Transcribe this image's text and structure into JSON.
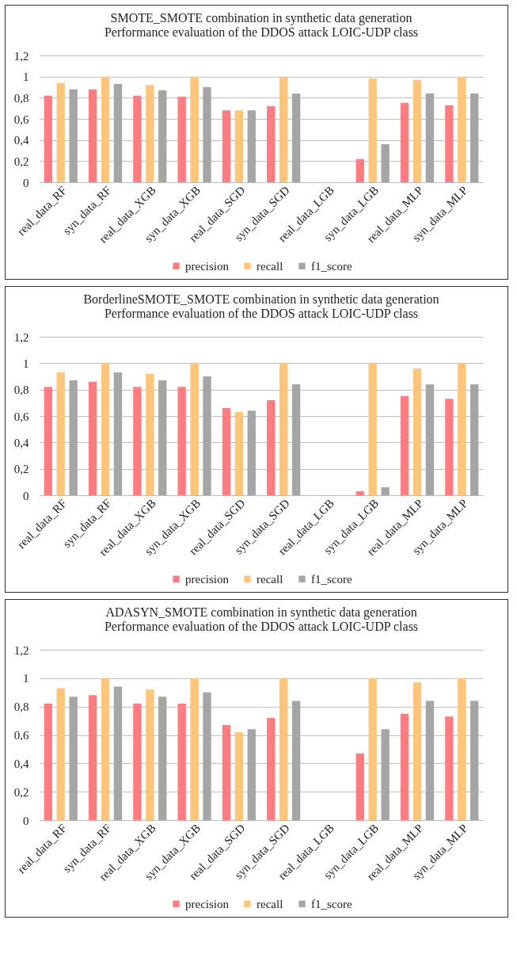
{
  "chart_data": [
    {
      "type": "bar",
      "title": "SMOTE_SMOTE  combination in synthetic data generation Performance evaluation of the DDOS attack LOIC-UDP class",
      "categories": [
        "real_data_RF",
        "syn_data_RF",
        "real_data_XGB",
        "syn_data_XGB",
        "real_data_SGD",
        "syn_data_SGD",
        "real_data_LGB",
        "syn_data_LGB",
        "real_data_MLP",
        "syn_data_MLP"
      ],
      "series": [
        {
          "name": "precision",
          "color": "#ff7c80",
          "values": [
            0.82,
            0.88,
            0.82,
            0.81,
            0.68,
            0.72,
            0,
            0.22,
            0.75,
            0.73
          ]
        },
        {
          "name": "recall",
          "color": "#ffc57a",
          "values": [
            0.94,
            1,
            0.92,
            1,
            0.68,
            1,
            0,
            0.98,
            0.97,
            1
          ]
        },
        {
          "name": "f1_score",
          "color": "#a5a5a5",
          "values": [
            0.88,
            0.93,
            0.87,
            0.9,
            0.68,
            0.84,
            0,
            0.36,
            0.84,
            0.84
          ]
        }
      ],
      "ylim": [
        0,
        1.2
      ],
      "yticks": [
        {
          "value": 0,
          "label": "0"
        },
        {
          "value": 0.2,
          "label": "0,2"
        },
        {
          "value": 0.4,
          "label": "0,4"
        },
        {
          "value": 0.6,
          "label": "0,6"
        },
        {
          "value": 0.8,
          "label": "0,8"
        },
        {
          "value": 1,
          "label": "1"
        },
        {
          "value": 1.2,
          "label": "1,2"
        }
      ],
      "grid": "y",
      "legend": "bottom"
    },
    {
      "type": "bar",
      "title": "BorderlineSMOTE_SMOTE combination in synthetic data generation Performance evaluation of the DDOS attack LOIC-UDP class",
      "categories": [
        "real_data_RF",
        "syn_data_RF",
        "real_data_XGB",
        "syn_data_XGB",
        "real_data_SGD",
        "syn_data_SGD",
        "real_data_LGB",
        "syn_data_LGB",
        "real_data_MLP",
        "syn_data_MLP"
      ],
      "series": [
        {
          "name": "precision",
          "color": "#ff7c80",
          "values": [
            0.82,
            0.86,
            0.82,
            0.82,
            0.66,
            0.72,
            0,
            0.03,
            0.75,
            0.73
          ]
        },
        {
          "name": "recall",
          "color": "#ffc57a",
          "values": [
            0.93,
            1,
            0.92,
            1,
            0.63,
            1,
            0,
            1,
            0.96,
            1
          ]
        },
        {
          "name": "f1_score",
          "color": "#a5a5a5",
          "values": [
            0.87,
            0.93,
            0.87,
            0.9,
            0.64,
            0.84,
            0,
            0.06,
            0.84,
            0.84
          ]
        }
      ],
      "ylim": [
        0,
        1.2
      ],
      "yticks": [
        {
          "value": 0,
          "label": "0"
        },
        {
          "value": 0.2,
          "label": "0,2"
        },
        {
          "value": 0.4,
          "label": "0,4"
        },
        {
          "value": 0.6,
          "label": "0,6"
        },
        {
          "value": 0.8,
          "label": "0,8"
        },
        {
          "value": 1,
          "label": "1"
        },
        {
          "value": 1.2,
          "label": "1,2"
        }
      ],
      "grid": "y",
      "legend": "bottom"
    },
    {
      "type": "bar",
      "title": "ADASYN_SMOTE  combination in synthetic data generation Performance evaluation of the DDOS attack LOIC-UDP class",
      "categories": [
        "real_data_RF",
        "syn_data_RF",
        "real_data_XGB",
        "syn_data_XGB",
        "real_data_SGD",
        "syn_data_SGD",
        "real_data_LGB",
        "syn_data_LGB",
        "real_data_MLP",
        "syn_data_MLP"
      ],
      "series": [
        {
          "name": "precision",
          "color": "#ff7c80",
          "values": [
            0.82,
            0.88,
            0.82,
            0.82,
            0.67,
            0.72,
            0,
            0.47,
            0.75,
            0.73
          ]
        },
        {
          "name": "recall",
          "color": "#ffc57a",
          "values": [
            0.93,
            1,
            0.92,
            1,
            0.62,
            1,
            0,
            1,
            0.97,
            1
          ]
        },
        {
          "name": "f1_score",
          "color": "#a5a5a5",
          "values": [
            0.87,
            0.94,
            0.87,
            0.9,
            0.64,
            0.84,
            0,
            0.64,
            0.84,
            0.84
          ]
        }
      ],
      "ylim": [
        0,
        1.2
      ],
      "yticks": [
        {
          "value": 0,
          "label": "0"
        },
        {
          "value": 0.2,
          "label": "0,2"
        },
        {
          "value": 0.4,
          "label": "0,4"
        },
        {
          "value": 0.6,
          "label": "0,6"
        },
        {
          "value": 0.8,
          "label": "0,8"
        },
        {
          "value": 1,
          "label": "1"
        },
        {
          "value": 1.2,
          "label": "1,2"
        }
      ],
      "grid": "y",
      "legend": "bottom"
    }
  ]
}
